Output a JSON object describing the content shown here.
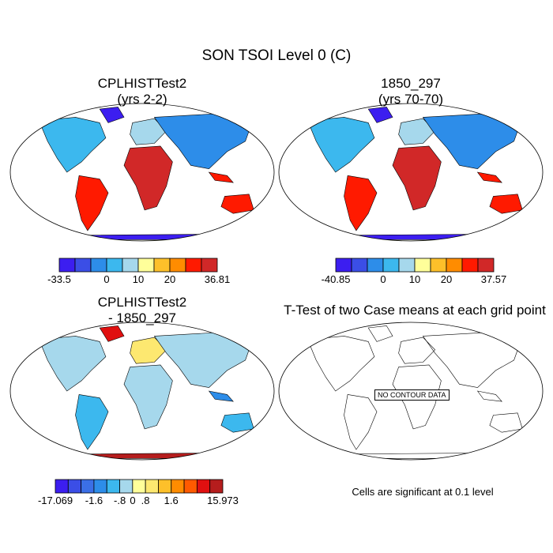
{
  "figure": {
    "main_title": "SON TSOI Level 0 (C)",
    "note": "Cells are significant at 0.1 level",
    "nodata_label": "NO CONTOUR DATA"
  },
  "chart_data": [
    {
      "type": "heatmap",
      "title": "CPLHISTTest2",
      "subtitle": "(yrs 2-2)",
      "colorbar": {
        "colors": [
          "#3c1ef0",
          "#3b4ee6",
          "#2d8de9",
          "#3cb8ee",
          "#a6d8ec",
          "#ffff9a",
          "#fdc02a",
          "#ff8c00",
          "#ff1a00",
          "#d12828"
        ],
        "labels": [
          "-33.5",
          "0",
          "10",
          "20",
          "36.81"
        ]
      }
    },
    {
      "type": "heatmap",
      "title": "1850_297",
      "subtitle": "(yrs 70-70)",
      "colorbar": {
        "colors": [
          "#3c1ef0",
          "#3b4ee6",
          "#2d8de9",
          "#3cb8ee",
          "#a6d8ec",
          "#ffff9a",
          "#fdc02a",
          "#ff8c00",
          "#ff1a00",
          "#d12828"
        ],
        "labels": [
          "-40.85",
          "0",
          "10",
          "20",
          "37.57"
        ]
      }
    },
    {
      "type": "heatmap",
      "title": "CPLHISTTest2",
      "subtitle": "- 1850_297",
      "colorbar": {
        "colors": [
          "#3c1ef0",
          "#3b4ee6",
          "#3b6fe6",
          "#2d8de9",
          "#3cb8ee",
          "#a6d8ec",
          "#ffff9a",
          "#fde870",
          "#fdc02a",
          "#ff8c00",
          "#ff5a00",
          "#e01010",
          "#b51d1d"
        ],
        "labels": [
          "-17.069",
          "-1.6",
          "-.8",
          "0",
          ".8",
          "1.6",
          "15.973"
        ]
      }
    },
    {
      "type": "heatmap",
      "title": "T-Test of two Case means at each grid point",
      "subtitle": "",
      "colorbar": {
        "colors": [],
        "labels": []
      }
    }
  ]
}
